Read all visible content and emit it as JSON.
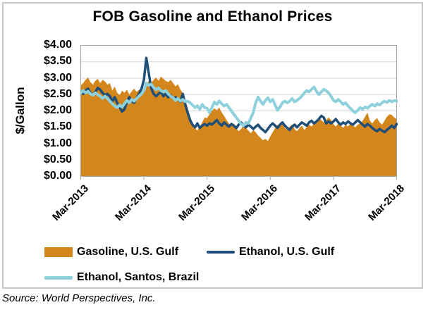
{
  "source_note": "Source: World Perspectives, Inc.",
  "chart_data": {
    "type": "area",
    "title": "FOB Gasoline and Ethanol Prices",
    "xlabel": "",
    "ylabel": "$/Gallon",
    "ylim": [
      0,
      4
    ],
    "ytick_step": 0.5,
    "ytick_labels": [
      "$4.00",
      "$3.50",
      "$3.00",
      "$2.50",
      "$2.00",
      "$1.50",
      "$1.00",
      "$0.50",
      "$0.00"
    ],
    "xtick_labels": [
      "Mar-2013",
      "Mar-2014",
      "Mar-2015",
      "Mar-2016",
      "Mar-2017",
      "Mar-2018"
    ],
    "x_major_ticks": [
      0,
      26,
      52,
      78,
      104,
      130
    ],
    "x_unit": "biweekly points from Mar-2013 to Mar-2018",
    "grid": "horizontal",
    "legend_position": "bottom",
    "style": {
      "gridline": "#D6D6D6",
      "frame": "#A6A6A6"
    },
    "series": [
      {
        "name": "Gasoline, U.S. Gulf",
        "type": "area",
        "color": "#D2861C",
        "width": 0,
        "values": [
          2.78,
          2.85,
          2.95,
          3.02,
          2.88,
          2.8,
          2.92,
          2.98,
          2.85,
          2.95,
          2.9,
          2.8,
          2.85,
          2.62,
          2.75,
          2.55,
          2.48,
          2.62,
          2.55,
          2.65,
          2.5,
          2.6,
          2.68,
          2.58,
          2.65,
          2.6,
          2.68,
          2.8,
          2.92,
          2.85,
          2.95,
          3.02,
          2.92,
          3.05,
          2.98,
          2.92,
          2.88,
          2.95,
          2.85,
          2.75,
          2.82,
          2.65,
          2.55,
          2.35,
          2.1,
          1.85,
          1.62,
          1.48,
          1.4,
          1.52,
          1.65,
          1.8,
          1.78,
          1.9,
          2.0,
          2.08,
          2.02,
          2.1,
          1.95,
          1.85,
          1.72,
          1.62,
          1.55,
          1.62,
          1.48,
          1.38,
          1.45,
          1.55,
          1.48,
          1.4,
          1.32,
          1.42,
          1.35,
          1.25,
          1.18,
          1.1,
          1.15,
          1.08,
          1.22,
          1.35,
          1.48,
          1.58,
          1.52,
          1.6,
          1.48,
          1.42,
          1.52,
          1.58,
          1.45,
          1.38,
          1.48,
          1.55,
          1.42,
          1.5,
          1.58,
          1.52,
          1.62,
          1.7,
          1.78,
          1.72,
          1.65,
          1.72,
          1.8,
          1.72,
          1.6,
          1.52,
          1.62,
          1.55,
          1.48,
          1.58,
          1.52,
          1.62,
          1.55,
          1.5,
          1.58,
          1.62,
          1.7,
          1.82,
          1.95,
          1.7,
          1.62,
          1.72,
          1.78,
          1.65,
          1.58,
          1.7,
          1.82,
          1.9,
          1.88,
          1.8,
          1.75
        ]
      },
      {
        "name": "Ethanol, U.S. Gulf",
        "type": "line",
        "color": "#1F4E79",
        "width": 3.5,
        "values": [
          2.58,
          2.52,
          2.62,
          2.68,
          2.55,
          2.48,
          2.58,
          2.7,
          2.65,
          2.55,
          2.48,
          2.52,
          2.45,
          2.3,
          2.42,
          2.25,
          2.12,
          1.98,
          2.05,
          2.28,
          2.42,
          2.3,
          2.25,
          2.4,
          2.52,
          2.68,
          2.95,
          3.62,
          3.15,
          2.7,
          2.52,
          2.45,
          2.52,
          2.58,
          2.45,
          2.52,
          2.42,
          2.48,
          2.38,
          2.42,
          2.35,
          2.28,
          2.52,
          2.2,
          1.95,
          1.72,
          1.58,
          1.5,
          1.62,
          1.48,
          1.55,
          1.6,
          1.55,
          1.62,
          1.58,
          1.65,
          1.72,
          1.62,
          1.55,
          1.65,
          1.58,
          1.52,
          1.6,
          1.55,
          1.48,
          1.58,
          1.65,
          1.55,
          1.5,
          1.58,
          1.52,
          1.45,
          1.52,
          1.58,
          1.48,
          1.42,
          1.35,
          1.45,
          1.55,
          1.62,
          1.55,
          1.48,
          1.58,
          1.65,
          1.55,
          1.48,
          1.42,
          1.52,
          1.58,
          1.5,
          1.58,
          1.65,
          1.6,
          1.55,
          1.65,
          1.7,
          1.62,
          1.68,
          1.75,
          1.85,
          1.8,
          1.62,
          1.68,
          1.62,
          1.68,
          1.75,
          1.65,
          1.58,
          1.65,
          1.6,
          1.68,
          1.62,
          1.58,
          1.65,
          1.72,
          1.65,
          1.58,
          1.52,
          1.6,
          1.55,
          1.48,
          1.42,
          1.38,
          1.45,
          1.4,
          1.35,
          1.42,
          1.48,
          1.55,
          1.48,
          1.6
        ]
      },
      {
        "name": "Ethanol, Santos, Brazil",
        "type": "line",
        "color": "#8ED1DC",
        "width": 4,
        "values": [
          2.55,
          2.62,
          2.55,
          2.6,
          2.52,
          2.48,
          2.55,
          2.5,
          2.45,
          2.38,
          2.45,
          2.38,
          2.3,
          2.22,
          2.15,
          2.1,
          2.18,
          2.12,
          2.22,
          2.32,
          2.25,
          2.35,
          2.3,
          2.38,
          2.45,
          2.52,
          2.62,
          2.85,
          2.78,
          2.82,
          2.72,
          2.65,
          2.7,
          2.62,
          2.58,
          2.62,
          2.52,
          2.45,
          2.4,
          2.32,
          2.38,
          2.3,
          2.35,
          2.28,
          2.3,
          2.25,
          2.18,
          2.1,
          2.16,
          2.05,
          2.2,
          2.1,
          2.08,
          1.95,
          2.1,
          2.27,
          2.2,
          2.3,
          2.22,
          2.15,
          2.2,
          2.1,
          2.0,
          1.9,
          1.8,
          1.7,
          1.6,
          1.55,
          1.65,
          1.62,
          1.78,
          1.95,
          2.25,
          2.42,
          2.3,
          2.2,
          2.32,
          2.4,
          2.28,
          2.35,
          2.18,
          2.02,
          2.12,
          2.25,
          2.3,
          2.25,
          2.3,
          2.38,
          2.28,
          2.32,
          2.38,
          2.45,
          2.55,
          2.62,
          2.58,
          2.66,
          2.73,
          2.6,
          2.5,
          2.58,
          2.66,
          2.62,
          2.55,
          2.45,
          2.32,
          2.28,
          2.35,
          2.28,
          2.2,
          2.25,
          2.15,
          2.08,
          2.0,
          1.95,
          2.02,
          2.1,
          2.05,
          2.12,
          2.08,
          2.15,
          2.2,
          2.15,
          2.22,
          2.18,
          2.25,
          2.3,
          2.26,
          2.32,
          2.28,
          2.32,
          2.3
        ]
      }
    ]
  }
}
